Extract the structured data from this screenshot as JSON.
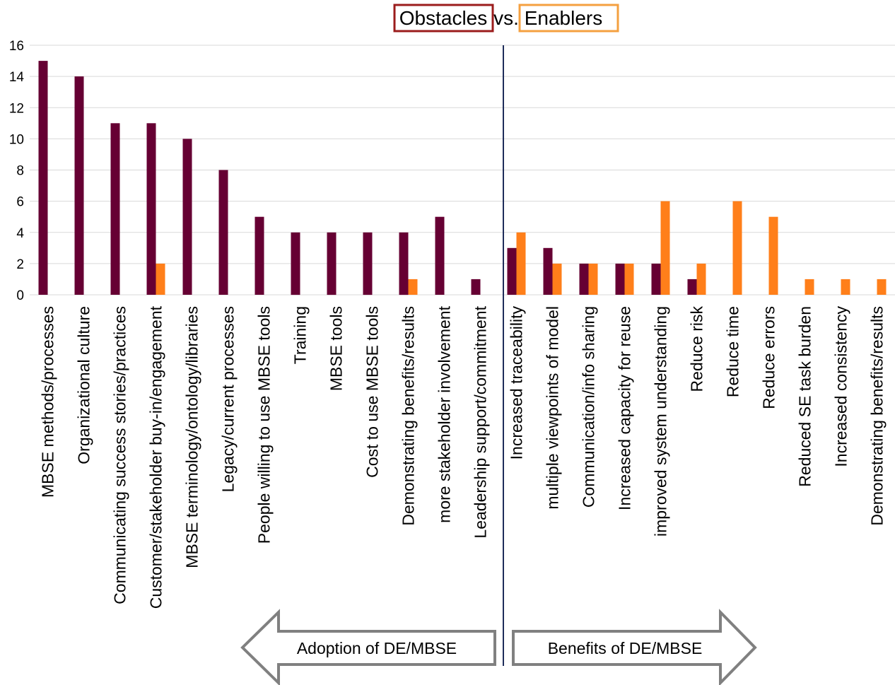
{
  "chart_data": {
    "type": "bar",
    "title_parts": {
      "obstacles": "Obstacles",
      "vs": "vs.",
      "enablers": "Enablers"
    },
    "ylim": [
      0,
      16
    ],
    "yticks": [
      0,
      2,
      4,
      6,
      8,
      10,
      12,
      14,
      16
    ],
    "grid": true,
    "categories": [
      "MBSE methods/processes",
      "Organizational culture",
      "Communicating success stories/practices",
      "Customer/stakeholder buy-in/engagement",
      "MBSE terminology/ontology/libraries",
      "Legacy/current processes",
      "People willing to use MBSE tools",
      "Training",
      "MBSE tools",
      "Cost to use MBSE tools",
      "Demonstrating benefits/results",
      "more stakeholder involvement",
      "Leadership support/commitment",
      "Increased traceability",
      "multiple viewpoints of model",
      "Communication/info sharing",
      "Increased capacity for reuse",
      "improved system understanding",
      "Reduce risk",
      "Reduce time",
      "Reduce errors",
      "Reduced SE task burden",
      "Increased consistency",
      "Demonstrating benefits/results"
    ],
    "series": [
      {
        "name": "Obstacles",
        "color": "#660033",
        "values": [
          15,
          14,
          11,
          11,
          10,
          8,
          5,
          4,
          4,
          4,
          4,
          5,
          1,
          3,
          3,
          2,
          2,
          2,
          1,
          0,
          0,
          0,
          0,
          0
        ]
      },
      {
        "name": "Enablers",
        "color": "#ff7f1a",
        "values": [
          0,
          0,
          0,
          2,
          0,
          0,
          0,
          0,
          0,
          0,
          1,
          0,
          0,
          4,
          2,
          2,
          2,
          6,
          2,
          6,
          5,
          1,
          1,
          1
        ]
      }
    ],
    "legend_box_colors": {
      "obstacles": "#9b1c1c",
      "enablers": "#f4a040"
    },
    "annotations": {
      "left_arrow": "Adoption of DE/MBSE",
      "right_arrow": "Benefits of DE/MBSE"
    },
    "divider_color": "#1f2d5a",
    "grid_color": "#d9d9d9"
  }
}
